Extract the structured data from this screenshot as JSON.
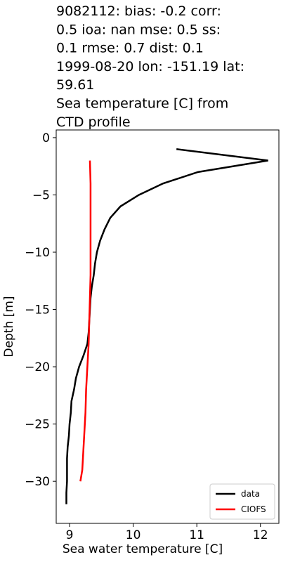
{
  "chart_data": {
    "type": "line",
    "title_lines": [
      "9082112: bias: -0.2  corr:",
      "0.5  ioa: nan  mse: 0.5  ss:",
      "0.1  rmse: 0.7  dist: 0.1",
      "1999-08-20 lon: -151.19 lat:",
      "59.61",
      "Sea temperature [C] from",
      "CTD profile"
    ],
    "xlabel": "Sea water temperature [C]",
    "ylabel": "Depth [m]",
    "xlim": [
      8.79,
      12.29
    ],
    "ylim": [
      -33.67,
      0.67
    ],
    "xticks": [
      9,
      10,
      11,
      12
    ],
    "yticks": [
      0,
      {
        "value": -5,
        "label": "−5"
      },
      {
        "value": -10,
        "label": "−10"
      },
      {
        "value": -15,
        "label": "−15"
      },
      {
        "value": -20,
        "label": "−20"
      },
      {
        "value": -25,
        "label": "−25"
      },
      {
        "value": -30,
        "label": "−30"
      }
    ],
    "legend": "lower right",
    "series": [
      {
        "name": "data",
        "color": "#000000",
        "x": [
          10.68,
          12.12,
          11.02,
          10.47,
          10.09,
          9.8,
          9.64,
          9.55,
          9.48,
          9.43,
          9.4,
          9.38,
          9.35,
          9.33,
          9.32,
          9.31,
          9.3,
          9.28,
          9.22,
          9.15,
          9.1,
          9.07,
          9.03,
          9.02,
          9.0,
          8.99,
          8.97,
          8.96,
          8.96,
          8.96,
          8.95,
          8.95
        ],
        "y": [
          -1,
          -2,
          -3,
          -4,
          -5,
          -6,
          -7,
          -8,
          -9,
          -10,
          -11,
          -12,
          -13,
          -14,
          -15,
          -16,
          -17,
          -18,
          -19,
          -20,
          -21,
          -22,
          -23,
          -24,
          -25,
          -26,
          -27,
          -28,
          -29,
          -30,
          -31,
          -32
        ]
      },
      {
        "name": "CIOFS",
        "color": "#ff0000",
        "x": [
          9.32,
          9.33,
          9.33,
          9.33,
          9.33,
          9.33,
          9.32,
          9.31,
          9.3,
          9.28,
          9.26,
          9.25,
          9.23,
          9.21,
          9.2,
          9.17
        ],
        "y": [
          -2,
          -4,
          -6,
          -8,
          -10,
          -12,
          -14,
          -16,
          -18,
          -20,
          -22,
          -24,
          -26,
          -28,
          -29,
          -30
        ]
      }
    ]
  }
}
